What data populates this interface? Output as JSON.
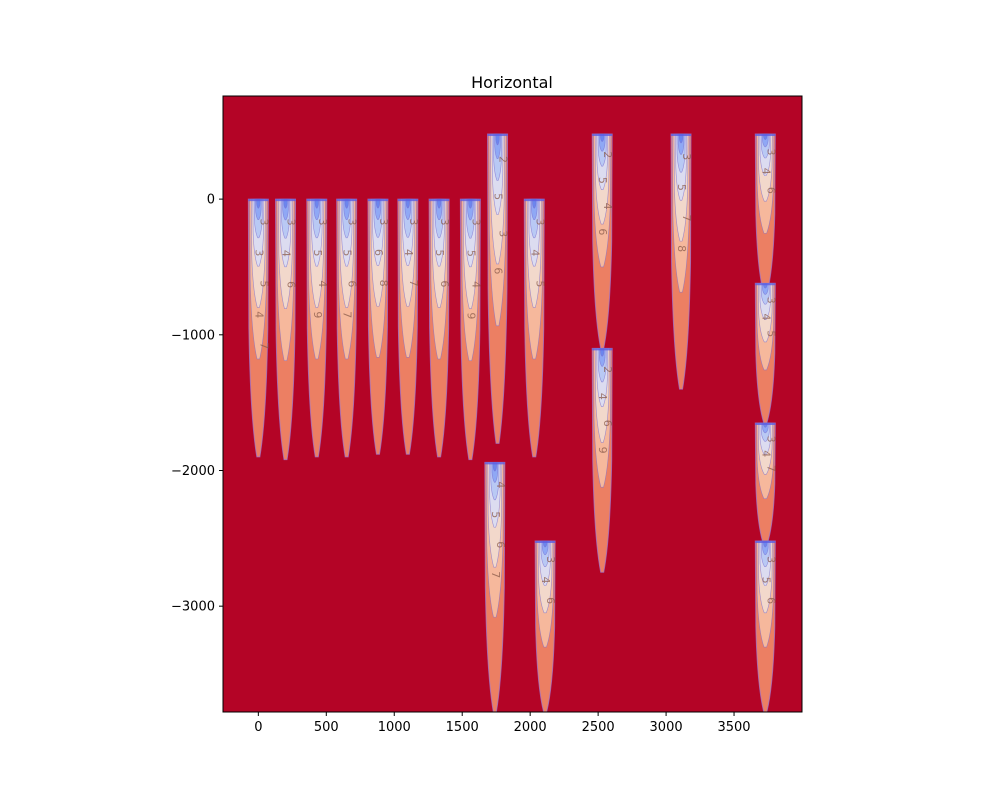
{
  "chart_data": {
    "type": "heatmap",
    "subtype": "filled-contour",
    "title": "Horizontal",
    "xlabel": "",
    "ylabel": "",
    "xlim": [
      -260,
      4000
    ],
    "ylim": [
      -3780,
      760
    ],
    "x_ticks": [
      0,
      500,
      1000,
      1500,
      2000,
      2500,
      3000,
      3500
    ],
    "x_tick_labels": [
      "0",
      "500",
      "1000",
      "1500",
      "2000",
      "2500",
      "3000",
      "3500"
    ],
    "y_ticks": [
      0,
      -1000,
      -2000,
      -3000
    ],
    "y_tick_labels": [
      "0",
      "−1000",
      "−2000",
      "−3000"
    ],
    "background_level": 8,
    "colormap": "coolwarm",
    "colors": {
      "background": "#b40426",
      "level_7": "#ec7f63",
      "level_6": "#f6b89c",
      "level_5": "#f2d8cb",
      "level_4": "#dcdcf0",
      "level_3": "#b9c9f4",
      "level_2": "#8fa8f5",
      "level_1": "#6b86ee",
      "contour_line": "#7a6fd0",
      "well_outline": "#9b7ad8"
    },
    "wells": [
      {
        "x": 0,
        "top": 0,
        "bottom": -1900,
        "labels": [
          "3",
          "3",
          "5",
          "4",
          "7"
        ]
      },
      {
        "x": 200,
        "top": 0,
        "bottom": -1920,
        "labels": [
          "3",
          "4",
          "6"
        ]
      },
      {
        "x": 430,
        "top": 0,
        "bottom": -1900,
        "labels": [
          "3",
          "5",
          "4",
          "9"
        ]
      },
      {
        "x": 650,
        "top": 0,
        "bottom": -1900,
        "labels": [
          "3",
          "5",
          "6",
          "7"
        ]
      },
      {
        "x": 880,
        "top": 0,
        "bottom": -1880,
        "labels": [
          "3",
          "6",
          "8"
        ]
      },
      {
        "x": 1100,
        "top": 0,
        "bottom": -1880,
        "labels": [
          "3",
          "4",
          "7"
        ]
      },
      {
        "x": 1330,
        "top": 0,
        "bottom": -1900,
        "labels": [
          "3",
          "5",
          "6"
        ]
      },
      {
        "x": 1560,
        "top": 0,
        "bottom": -1920,
        "labels": [
          "3",
          "5",
          "4",
          "9"
        ]
      },
      {
        "x": 1760,
        "top": 480,
        "bottom": -1800,
        "labels": [
          "2",
          "5",
          "3",
          "6"
        ]
      },
      {
        "x": 2030,
        "top": 0,
        "bottom": -1900,
        "labels": [
          "3",
          "4",
          "5"
        ]
      },
      {
        "x": 2530,
        "top": 480,
        "bottom": -1100,
        "labels": [
          "2",
          "5",
          "4",
          "6"
        ]
      },
      {
        "x": 2530,
        "top": -1100,
        "bottom": -2750,
        "labels": [
          "2",
          "4",
          "6",
          "9"
        ]
      },
      {
        "x": 3110,
        "top": 480,
        "bottom": -1400,
        "labels": [
          "3",
          "5",
          "7",
          "8"
        ]
      },
      {
        "x": 3730,
        "top": 480,
        "bottom": -700,
        "labels": [
          "3",
          "4",
          "6"
        ]
      },
      {
        "x": 3730,
        "top": -620,
        "bottom": -1650,
        "labels": [
          "3",
          "4",
          "5"
        ]
      },
      {
        "x": 3730,
        "top": -1650,
        "bottom": -2550,
        "labels": [
          "3",
          "4",
          "7"
        ]
      },
      {
        "x": 3730,
        "top": -2520,
        "bottom": -3780,
        "labels": [
          "3",
          "5",
          "6"
        ]
      },
      {
        "x": 1740,
        "top": -1940,
        "bottom": -3780,
        "labels": [
          "4",
          "5",
          "6",
          "7"
        ]
      },
      {
        "x": 2110,
        "top": -2520,
        "bottom": -3780,
        "labels": [
          "3",
          "4",
          "6"
        ]
      }
    ]
  }
}
